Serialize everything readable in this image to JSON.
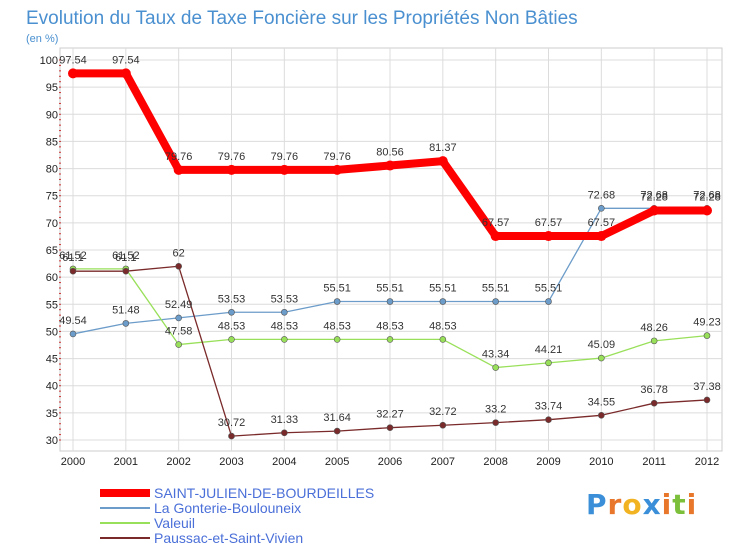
{
  "chart_data": {
    "type": "line",
    "title": "Evolution du Taux de Taxe Foncière sur les Propriétés Non Bâties",
    "subtitle": "(en %)",
    "x": [
      "2000",
      "2001",
      "2002",
      "2003",
      "2004",
      "2005",
      "2006",
      "2007",
      "2008",
      "2009",
      "2010",
      "2011",
      "2012"
    ],
    "ylim": [
      30,
      100
    ],
    "yticks": [
      30,
      35,
      40,
      45,
      50,
      55,
      60,
      65,
      70,
      75,
      80,
      85,
      90,
      95,
      100
    ],
    "grid": true,
    "legend_position": "bottom-left",
    "series": [
      {
        "name": "SAINT-JULIEN-DE-BOURDEILLES",
        "color": "#ff0000",
        "values": [
          97.54,
          97.54,
          79.76,
          79.76,
          79.76,
          79.76,
          80.56,
          81.37,
          67.57,
          67.57,
          67.57,
          72.28,
          72.28
        ],
        "labels": [
          "97.54",
          "97.54",
          "79.76",
          "79.76",
          "79.76",
          "79.76",
          "80.56",
          "81.37",
          "67.57",
          "67.57",
          "67.57",
          "72.28",
          "72.28"
        ]
      },
      {
        "name": "La Gonterie-Boulouneix",
        "color": "#6c9cc9",
        "values": [
          49.54,
          51.48,
          52.49,
          53.53,
          53.53,
          55.51,
          55.51,
          55.51,
          55.51,
          55.51,
          72.68,
          72.68,
          72.68
        ],
        "labels": [
          "49.54",
          "51.48",
          "52.49",
          "53.53",
          "53.53",
          "55.51",
          "55.51",
          "55.51",
          "55.51",
          "55.51",
          "72.68",
          "72.68",
          "72.68"
        ]
      },
      {
        "name": "Valeuil",
        "color": "#99e05a",
        "values": [
          61.52,
          61.52,
          47.58,
          48.53,
          48.53,
          48.53,
          48.53,
          48.53,
          43.34,
          44.21,
          45.09,
          48.26,
          49.23
        ],
        "labels": [
          "61.52",
          "61.52",
          "47.58",
          "48.53",
          "48.53",
          "48.53",
          "48.53",
          "48.53",
          "43.34",
          "44.21",
          "45.09",
          "48.26",
          "49.23"
        ]
      },
      {
        "name": "Paussac-et-Saint-Vivien",
        "color": "#7a2a2a",
        "values": [
          61.1,
          61.1,
          62,
          30.72,
          31.33,
          31.64,
          32.27,
          32.72,
          33.2,
          33.74,
          34.55,
          36.78,
          37.38
        ],
        "labels": [
          "61.1",
          "61.1",
          "62",
          "30.72",
          "31.33",
          "31.64",
          "32.27",
          "32.72",
          "33.2",
          "33.74",
          "34.55",
          "36.78",
          "37.38"
        ]
      }
    ]
  },
  "logo": {
    "letters": [
      "P",
      "r",
      "o",
      "x",
      "i",
      "t",
      "i"
    ],
    "colors": [
      "#3a8fd8",
      "#e8762b",
      "#f2b322",
      "#3a8fd8",
      "#e8762b",
      "#7bbf3a",
      "#e8762b"
    ]
  }
}
